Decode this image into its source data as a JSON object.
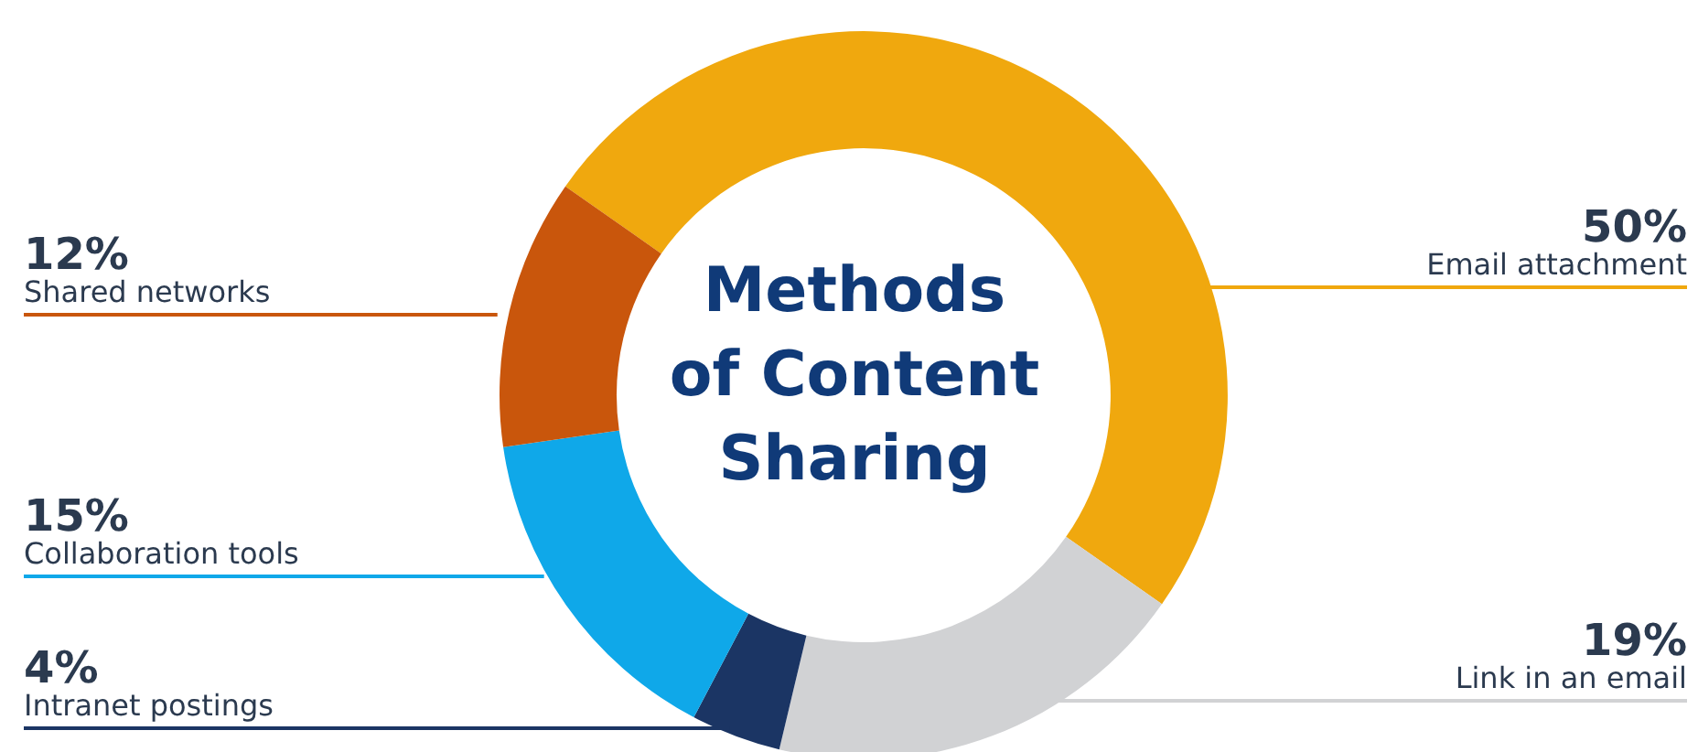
{
  "chart_data": {
    "type": "donut",
    "title": "Methods\nof Content\nSharing",
    "categories": [
      "Email attachment",
      "Link in an email",
      "Intranet postings",
      "Collaboration tools",
      "Shared networks"
    ],
    "values": [
      50,
      19,
      4,
      15,
      12
    ],
    "value_labels": [
      "50%",
      "19%",
      "4%",
      "15%",
      "12%"
    ],
    "colors": [
      "#f0a80e",
      "#d1d2d4",
      "#1b3564",
      "#0fa8e9",
      "#c9560c"
    ],
    "legend": false
  }
}
